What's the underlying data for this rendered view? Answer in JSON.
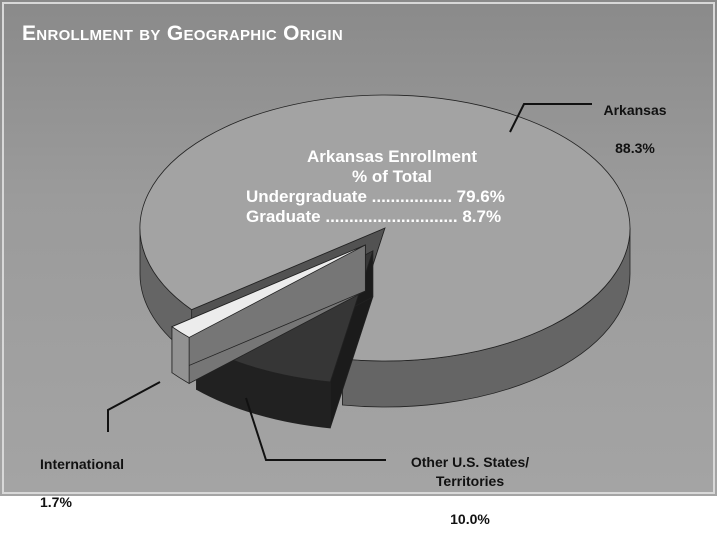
{
  "chart_data": {
    "type": "pie",
    "title": "Enrollment by Geographic Origin",
    "categories": [
      "Arkansas",
      "Other U.S. States/\nTerritories",
      "International"
    ],
    "values": [
      88.3,
      10.0,
      1.7
    ],
    "value_labels": [
      "88.3%",
      "10.0%",
      "1.7%"
    ],
    "colors": [
      "#a3a3a3",
      "#363636",
      "#ececec"
    ],
    "annotation": {
      "title": [
        "Arkansas Enrollment",
        "% of Total"
      ],
      "lines": [
        "Undergraduate ................. 79.6%",
        "Graduate ............................ 8.7%"
      ]
    }
  }
}
